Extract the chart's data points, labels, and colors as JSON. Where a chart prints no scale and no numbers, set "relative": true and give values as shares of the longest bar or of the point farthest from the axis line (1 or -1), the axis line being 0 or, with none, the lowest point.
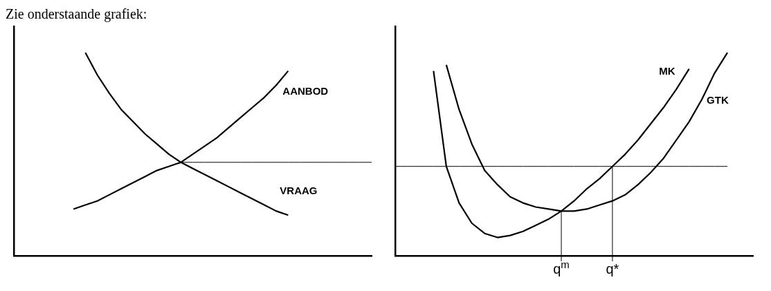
{
  "chart_data": [
    {
      "type": "line",
      "title": "Zie onderstaande grafiek:",
      "relative": true,
      "tick_labels": "x",
      "marker": "none",
      "categories": [
        null,
        null,
        null,
        null,
        null,
        null,
        null,
        null,
        null,
        null,
        null,
        null,
        null,
        null,
        null,
        null,
        null,
        null,
        null,
        null,
        null,
        null,
        null,
        null,
        null,
        null,
        null,
        null,
        null,
        null,
        null
      ],
      "series": [
        {
          "name": "AANBOD",
          "color": "#000000",
          "values": [
            null,
            null,
            null,
            null,
            null,
            0.23,
            0.25,
            0.27,
            0.3,
            0.33,
            0.36,
            0.39,
            0.42,
            0.44,
            0.46,
            0.5,
            0.54,
            0.58,
            0.63,
            0.68,
            0.73,
            0.78,
            0.84,
            0.91,
            null,
            null,
            null,
            null,
            null,
            null,
            null
          ]
        },
        {
          "name": "VRAAG",
          "color": "#000000",
          "values": [
            null,
            null,
            null,
            null,
            null,
            null,
            1.0,
            0.89,
            0.8,
            0.72,
            0.66,
            0.6,
            0.55,
            0.5,
            0.46,
            0.43,
            0.4,
            0.37,
            0.34,
            0.31,
            0.28,
            0.25,
            0.22,
            0.2,
            null,
            null,
            null,
            null,
            null,
            null,
            null
          ]
        },
        {
          "color": "#000000",
          "values": [
            null,
            null,
            null,
            null,
            null,
            null,
            null,
            null,
            null,
            null,
            null,
            null,
            null,
            null,
            0.46,
            0.46,
            0.46,
            0.46,
            0.46,
            0.46,
            0.46,
            0.46,
            0.46,
            0.46,
            0.46,
            0.46,
            0.46,
            0.46,
            0.46,
            0.46,
            0.46
          ]
        }
      ]
    },
    {
      "type": "line",
      "relative": true,
      "tick_labels": "x",
      "marker": "none",
      "ref_lines": [
        {
          "axis": "x",
          "value": "q$^{m}$",
          "color": "#000000"
        },
        {
          "axis": "x",
          "value": "q*",
          "color": "#000000"
        }
      ],
      "categories": [
        null,
        null,
        null,
        null,
        null,
        null,
        null,
        null,
        null,
        null,
        null,
        null,
        null,
        "q$^{m}$",
        null,
        null,
        null,
        "q*",
        null,
        null,
        null,
        null,
        null,
        null,
        null,
        null,
        null,
        null,
        null
      ],
      "series": [
        {
          "name": "MK",
          "color": "#000000",
          "values": [
            null,
            null,
            null,
            0.91,
            0.44,
            0.26,
            0.16,
            0.11,
            0.09,
            0.1,
            0.12,
            0.15,
            0.18,
            0.22,
            0.27,
            0.33,
            0.38,
            0.44,
            0.5,
            0.57,
            0.65,
            0.73,
            0.82,
            0.92,
            null,
            null,
            null,
            null,
            null
          ]
        },
        {
          "name": "GTK",
          "color": "#000000",
          "values": [
            null,
            null,
            null,
            null,
            0.94,
            0.72,
            0.55,
            0.42,
            0.35,
            0.29,
            0.26,
            0.24,
            0.23,
            0.22,
            0.22,
            0.23,
            0.25,
            0.27,
            0.3,
            0.35,
            0.41,
            0.48,
            0.57,
            0.66,
            0.77,
            0.9,
            1.0,
            null,
            null
          ]
        },
        {
          "color": "#000000",
          "values": [
            0.44,
            0.44,
            0.44,
            0.44,
            0.44,
            0.44,
            0.44,
            0.44,
            0.44,
            0.44,
            0.44,
            0.44,
            0.44,
            0.44,
            0.44,
            0.44,
            0.44,
            0.44,
            0.44,
            0.44,
            0.44,
            0.44,
            0.44,
            0.44,
            0.44,
            0.44,
            0.44,
            null,
            null
          ]
        }
      ]
    }
  ]
}
